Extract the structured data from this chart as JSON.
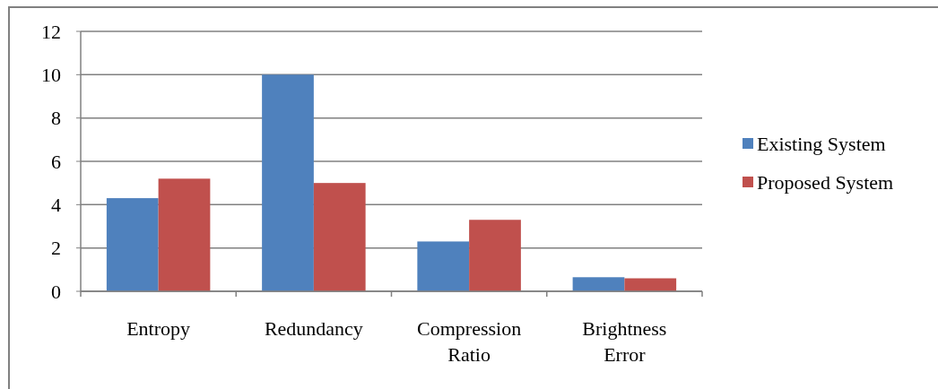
{
  "chart_data": {
    "type": "bar",
    "categories": [
      "Entropy",
      "Redundancy",
      "Compression Ratio",
      "Brightness Error"
    ],
    "series": [
      {
        "name": "Existing System",
        "color": "#4f81bd",
        "values": [
          4.3,
          10,
          2.3,
          0.65
        ]
      },
      {
        "name": "Proposed System",
        "color": "#c0504d",
        "values": [
          5.2,
          5,
          3.3,
          0.6
        ]
      }
    ],
    "ylim": [
      0,
      12
    ],
    "yticks": [
      0,
      2,
      4,
      6,
      8,
      10,
      12
    ],
    "grid": "y",
    "legend": "right"
  }
}
